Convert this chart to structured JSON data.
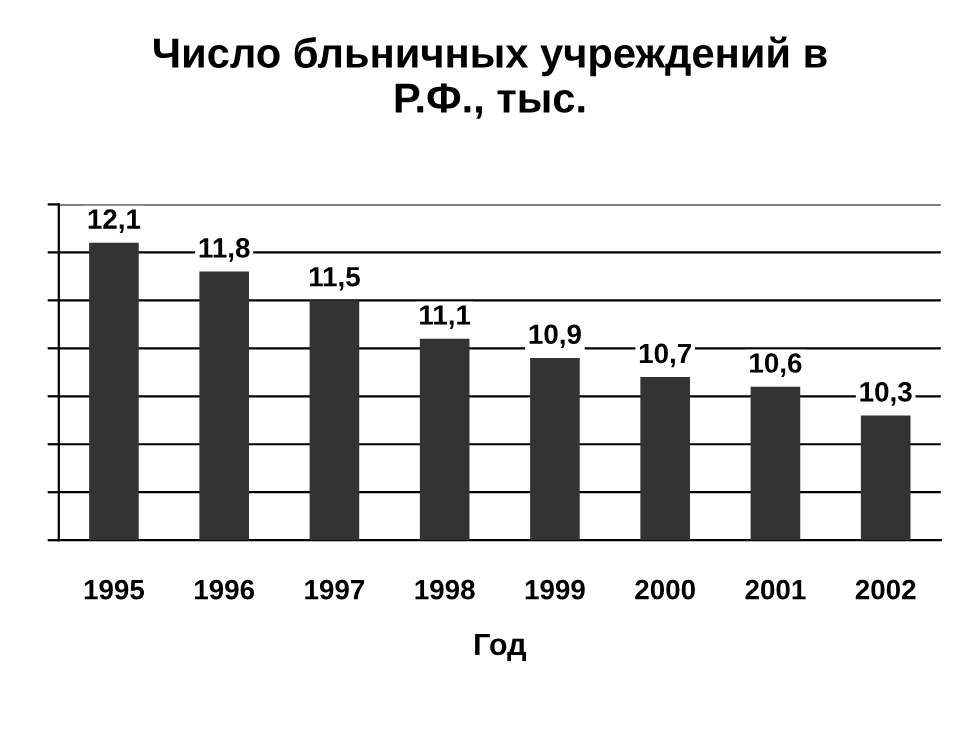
{
  "chart_data": {
    "type": "bar",
    "title": "Число бльничных учреждений в\nР.Ф., тыс.",
    "xlabel": "Год",
    "categories": [
      "1995",
      "1996",
      "1997",
      "1998",
      "1999",
      "2000",
      "2001",
      "2002"
    ],
    "values": [
      12.1,
      11.8,
      11.5,
      11.1,
      10.9,
      10.7,
      10.6,
      10.3
    ],
    "color": "#333333",
    "data_labels": true,
    "value_labels": [
      "12,1",
      "11,8",
      "11,5",
      "11,1",
      "10,9",
      "10,7",
      "10,6",
      "10,3"
    ],
    "ylim": [
      9,
      12.5
    ],
    "yticks": [
      {
        "value": 9,
        "label": null
      },
      {
        "value": 9.5,
        "label": null
      },
      {
        "value": 10,
        "label": null
      },
      {
        "value": 10.5,
        "label": null
      },
      {
        "value": 11,
        "label": null
      },
      {
        "value": 11.5,
        "label": null
      },
      {
        "value": 12,
        "label": null
      },
      {
        "value": 12.5,
        "label": null
      }
    ],
    "grid": "y",
    "tick_labels": "x",
    "legend": false
  }
}
